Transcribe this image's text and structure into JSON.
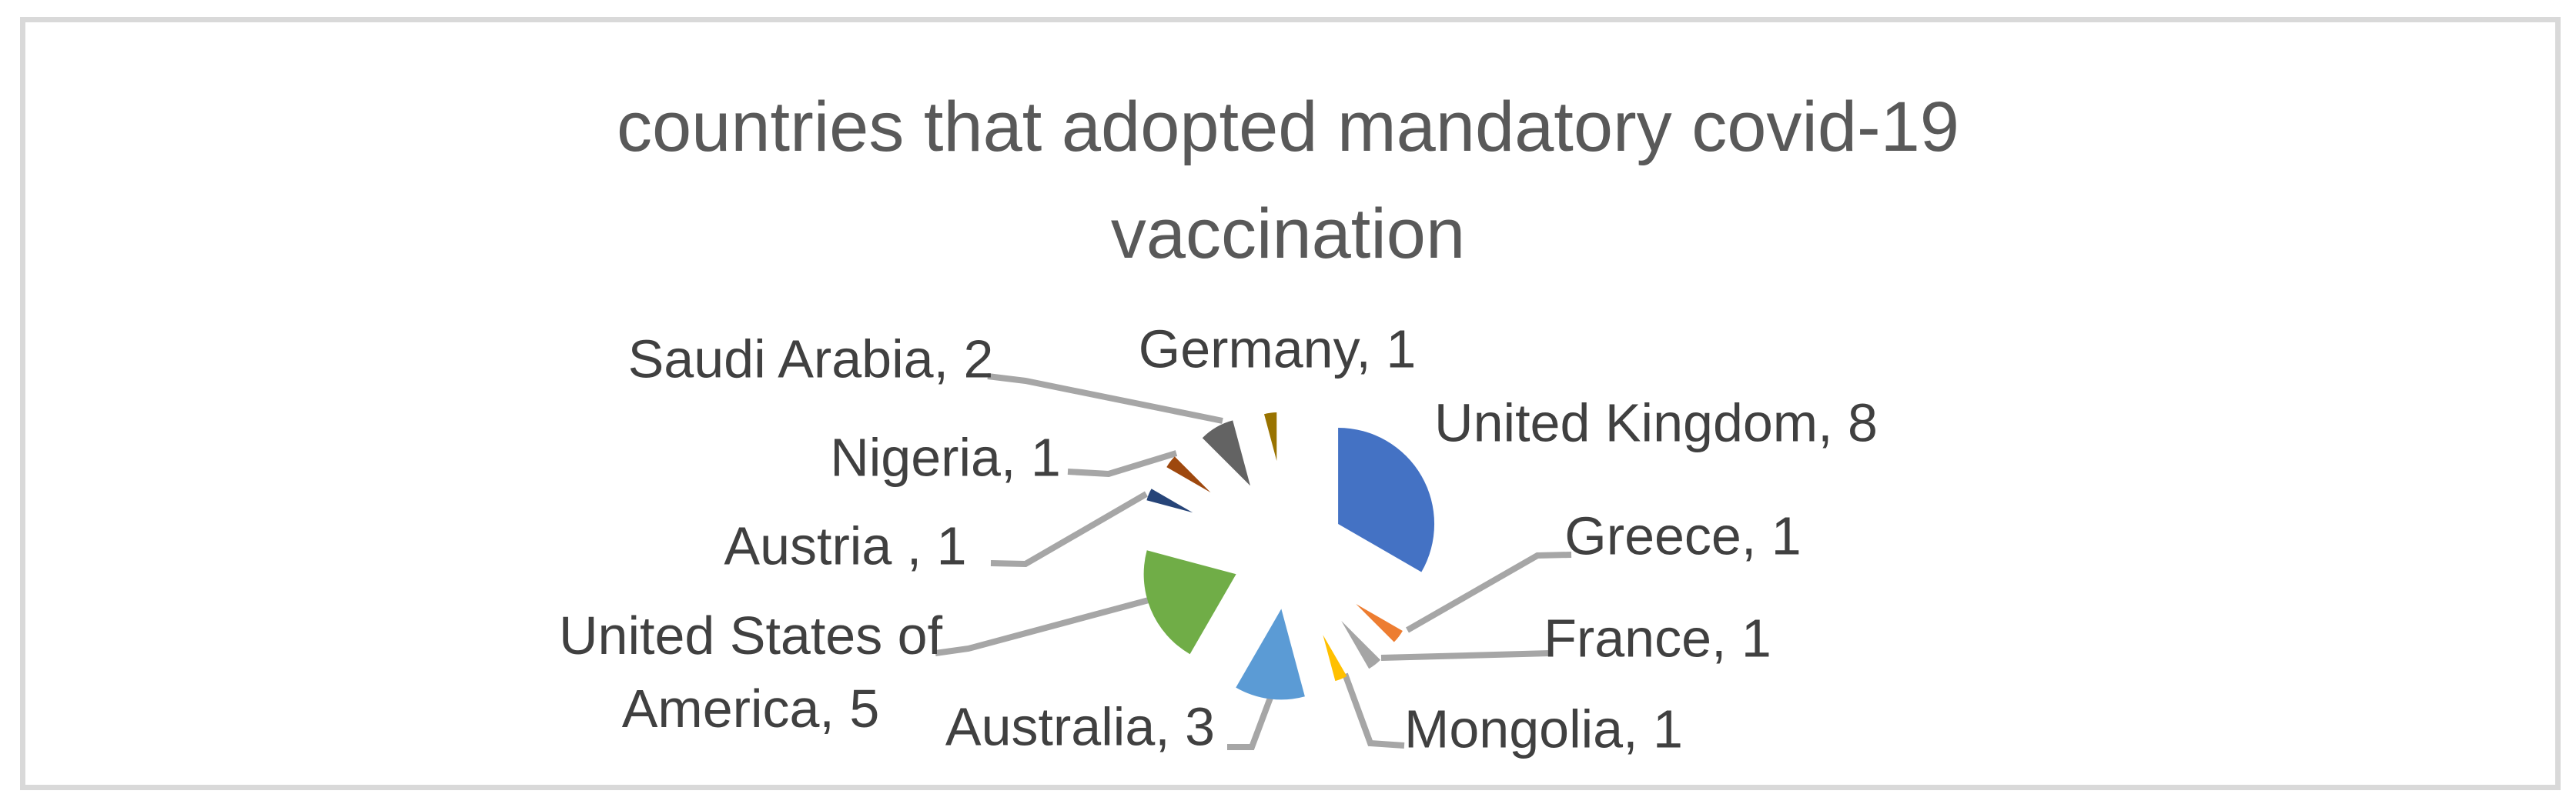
{
  "title": {
    "line1": "countries that adopted mandatory covid-19",
    "line2": "vaccination",
    "color": "#595959"
  },
  "chart_data": {
    "type": "pie",
    "title": "countries that adopted mandatory covid-19 vaccination",
    "total": 24,
    "legend_position": "none",
    "exploded": true,
    "label_format": "category, value",
    "label_color": "#404040",
    "leader_line_color": "#A6A6A6",
    "slices": [
      {
        "label": "United Kingdom",
        "value": 8,
        "color": "#4472C4",
        "display": "United Kingdom, 8"
      },
      {
        "label": "Greece",
        "value": 1,
        "color": "#ED7D31",
        "display": "Greece, 1"
      },
      {
        "label": "France",
        "value": 1,
        "color": "#A5A5A5",
        "display": "France, 1"
      },
      {
        "label": "Mongolia",
        "value": 1,
        "color": "#FFC000",
        "display": "Mongolia, 1"
      },
      {
        "label": "Australia",
        "value": 3,
        "color": "#5B9BD5",
        "display": "Australia, 3"
      },
      {
        "label": "United States of America",
        "value": 5,
        "color": "#70AD47",
        "display": "United States of America, 5",
        "display_lines": [
          "United States of",
          "America, 5"
        ]
      },
      {
        "label": "Austria",
        "value": 1,
        "color": "#264478",
        "display": "Austria , 1"
      },
      {
        "label": "Nigeria",
        "value": 1,
        "color": "#9E480E",
        "display": "Nigeria, 1"
      },
      {
        "label": "Saudi Arabia",
        "value": 2,
        "color": "#636363",
        "display": "Saudi Arabia, 2"
      },
      {
        "label": "Germany",
        "value": 1,
        "color": "#997300",
        "display": "Germany, 1"
      }
    ]
  }
}
